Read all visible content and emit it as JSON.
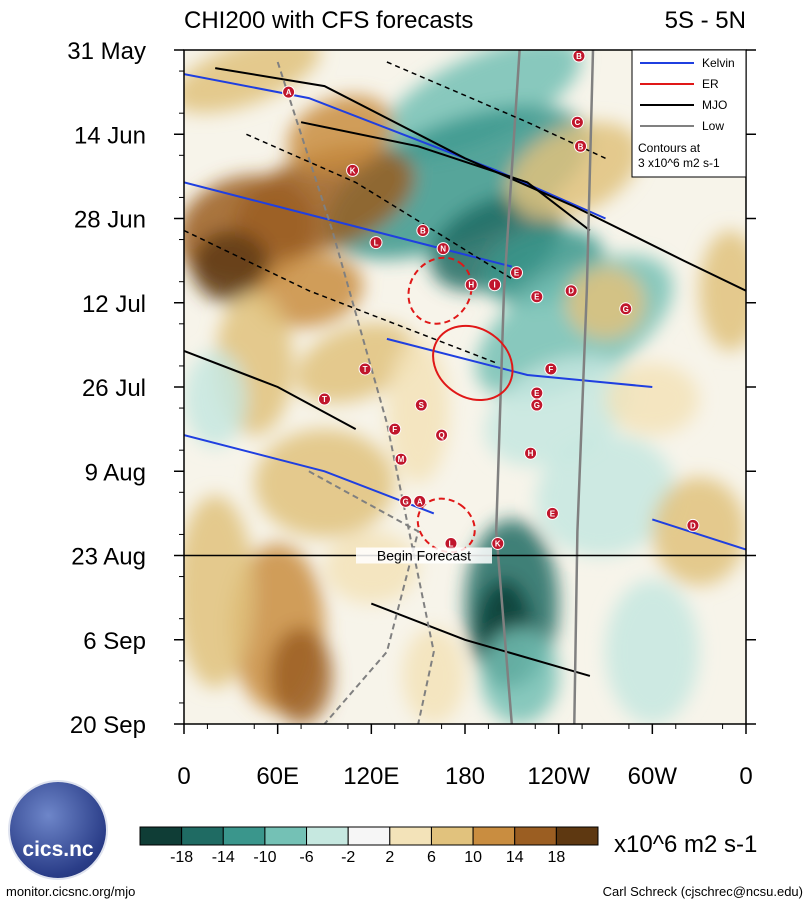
{
  "chart_data": {
    "type": "heatmap",
    "title": "CHI200 with CFS forecasts",
    "region": "5S - 5N",
    "x_axis": {
      "tick_labels": [
        "0",
        "60E",
        "120E",
        "180",
        "120W",
        "60W",
        "0"
      ],
      "range_deg": [
        0,
        360
      ]
    },
    "y_axis": {
      "tick_labels": [
        "31 May",
        "14 Jun",
        "28 Jun",
        "12 Jul",
        "26 Jul",
        "9 Aug",
        "23 Aug",
        "6 Sep",
        "20 Sep"
      ],
      "range_days": [
        0,
        112
      ],
      "inverted": true
    },
    "forecast_line": {
      "day": 84,
      "label": "Begin Forecast"
    },
    "colorbar": {
      "tick_labels": [
        "-18",
        "-14",
        "-10",
        "-6",
        "-2",
        "2",
        "6",
        "10",
        "14",
        "18"
      ],
      "colors": [
        "#0f3d36",
        "#1f6b63",
        "#3a968c",
        "#74c1b5",
        "#c6e8e0",
        "#f6f6f6",
        "#f3e3b9",
        "#e1c27d",
        "#c98d40",
        "#9b5e22",
        "#5e3811"
      ],
      "unit_label": "x10^6 m2 s-1"
    },
    "legend": {
      "items": [
        {
          "label": "Kelvin",
          "color": "#1f3fe0"
        },
        {
          "label": "ER",
          "color": "#e01818"
        },
        {
          "label": "MJO",
          "color": "#000000"
        },
        {
          "label": "Low",
          "color": "#808080"
        }
      ],
      "contour_note": [
        "Contours at",
        "3 x10^6 m2 s-1"
      ]
    },
    "storms": [
      {
        "letter": "B",
        "lon_deg": 253,
        "day": 1
      },
      {
        "letter": "A",
        "lon_deg": 67,
        "day": 7
      },
      {
        "letter": "C",
        "lon_deg": 252,
        "day": 12
      },
      {
        "letter": "B",
        "lon_deg": 254,
        "day": 16
      },
      {
        "letter": "K",
        "lon_deg": 108,
        "day": 20
      },
      {
        "letter": "B",
        "lon_deg": 153,
        "day": 30
      },
      {
        "letter": "L",
        "lon_deg": 123,
        "day": 32
      },
      {
        "letter": "N",
        "lon_deg": 166,
        "day": 33
      },
      {
        "letter": "E",
        "lon_deg": 213,
        "day": 37
      },
      {
        "letter": "H",
        "lon_deg": 184,
        "day": 39
      },
      {
        "letter": "I",
        "lon_deg": 199,
        "day": 39
      },
      {
        "letter": "D",
        "lon_deg": 248,
        "day": 40
      },
      {
        "letter": "E",
        "lon_deg": 226,
        "day": 41
      },
      {
        "letter": "G",
        "lon_deg": 283,
        "day": 43
      },
      {
        "letter": "T",
        "lon_deg": 116,
        "day": 53
      },
      {
        "letter": "F",
        "lon_deg": 235,
        "day": 53
      },
      {
        "letter": "T",
        "lon_deg": 90,
        "day": 58
      },
      {
        "letter": "E",
        "lon_deg": 226,
        "day": 57
      },
      {
        "letter": "S",
        "lon_deg": 152,
        "day": 59
      },
      {
        "letter": "G",
        "lon_deg": 226,
        "day": 59
      },
      {
        "letter": "F",
        "lon_deg": 135,
        "day": 63
      },
      {
        "letter": "Q",
        "lon_deg": 165,
        "day": 64
      },
      {
        "letter": "H",
        "lon_deg": 222,
        "day": 67
      },
      {
        "letter": "M",
        "lon_deg": 139,
        "day": 68
      },
      {
        "letter": "G",
        "lon_deg": 142,
        "day": 75
      },
      {
        "letter": "A",
        "lon_deg": 151,
        "day": 75
      },
      {
        "letter": "E",
        "lon_deg": 236,
        "day": 77
      },
      {
        "letter": "D",
        "lon_deg": 326,
        "day": 79
      },
      {
        "letter": "L",
        "lon_deg": 171,
        "day": 82
      },
      {
        "letter": "K",
        "lon_deg": 201,
        "day": 82
      }
    ]
  },
  "footer": {
    "left": "monitor.cicsnc.org/mjo",
    "right": "Carl Schreck (cjschrec@ncsu.edu)",
    "logo_text": "cics.nc"
  }
}
